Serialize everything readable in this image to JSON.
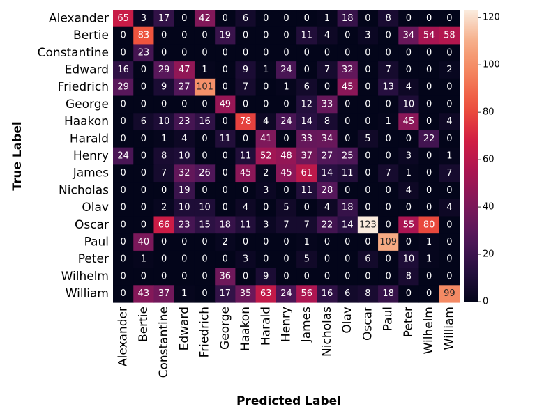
{
  "chart_data": {
    "type": "heatmap",
    "title": "",
    "xlabel": "Predicted Label",
    "ylabel": "True Label",
    "row_labels": [
      "Alexander",
      "Bertie",
      "Constantine",
      "Edward",
      "Friedrich",
      "George",
      "Haakon",
      "Harald",
      "Henry",
      "James",
      "Nicholas",
      "Olav",
      "Oscar",
      "Paul",
      "Peter",
      "Wilhelm",
      "William"
    ],
    "col_labels": [
      "Alexander",
      "Bertie",
      "Constantine",
      "Edward",
      "Friedrich",
      "George",
      "Haakon",
      "Harald",
      "Henry",
      "James",
      "Nicholas",
      "Olav",
      "Oscar",
      "Paul",
      "Peter",
      "Wilhelm",
      "William"
    ],
    "values": [
      [
        65,
        3,
        17,
        0,
        42,
        0,
        6,
        0,
        0,
        0,
        1,
        18,
        0,
        8,
        0,
        0,
        0
      ],
      [
        0,
        83,
        0,
        0,
        0,
        19,
        0,
        0,
        0,
        11,
        4,
        0,
        3,
        0,
        34,
        54,
        58
      ],
      [
        0,
        23,
        0,
        0,
        0,
        0,
        0,
        0,
        0,
        0,
        0,
        0,
        0,
        0,
        0,
        0,
        0
      ],
      [
        16,
        0,
        29,
        47,
        1,
        0,
        9,
        1,
        24,
        0,
        7,
        32,
        0,
        7,
        0,
        0,
        2
      ],
      [
        29,
        0,
        9,
        27,
        101,
        0,
        7,
        0,
        1,
        6,
        0,
        45,
        0,
        13,
        4,
        0,
        0
      ],
      [
        0,
        0,
        0,
        0,
        0,
        49,
        0,
        0,
        0,
        12,
        33,
        0,
        0,
        0,
        10,
        0,
        0
      ],
      [
        0,
        6,
        10,
        23,
        16,
        0,
        78,
        4,
        24,
        14,
        8,
        0,
        0,
        1,
        45,
        0,
        4
      ],
      [
        0,
        0,
        1,
        4,
        0,
        11,
        0,
        41,
        0,
        33,
        34,
        0,
        5,
        0,
        0,
        22,
        0
      ],
      [
        24,
        0,
        8,
        10,
        0,
        0,
        11,
        52,
        48,
        37,
        27,
        25,
        0,
        0,
        3,
        0,
        1
      ],
      [
        0,
        0,
        7,
        32,
        26,
        0,
        45,
        2,
        45,
        61,
        14,
        11,
        0,
        7,
        1,
        0,
        7
      ],
      [
        0,
        0,
        0,
        19,
        0,
        0,
        0,
        3,
        0,
        11,
        28,
        0,
        0,
        0,
        4,
        0,
        0
      ],
      [
        0,
        0,
        2,
        10,
        10,
        0,
        4,
        0,
        5,
        0,
        4,
        18,
        0,
        0,
        0,
        0,
        4
      ],
      [
        0,
        0,
        66,
        23,
        15,
        18,
        11,
        3,
        7,
        7,
        22,
        14,
        123,
        0,
        55,
        80,
        0
      ],
      [
        0,
        40,
        0,
        0,
        0,
        2,
        0,
        0,
        0,
        1,
        0,
        0,
        0,
        109,
        0,
        1,
        0
      ],
      [
        0,
        1,
        0,
        0,
        0,
        0,
        3,
        0,
        0,
        5,
        0,
        0,
        6,
        0,
        10,
        1,
        0
      ],
      [
        0,
        0,
        0,
        0,
        0,
        36,
        0,
        9,
        0,
        0,
        0,
        0,
        0,
        0,
        8,
        0,
        0
      ],
      [
        0,
        43,
        37,
        1,
        0,
        17,
        35,
        63,
        24,
        56,
        16,
        6,
        8,
        18,
        0,
        0,
        99
      ]
    ],
    "vmin": 0,
    "vmax": 123,
    "colormap": "rocket",
    "colorbar_ticks": [
      0,
      20,
      40,
      60,
      80,
      100,
      120
    ],
    "annotate": true
  }
}
